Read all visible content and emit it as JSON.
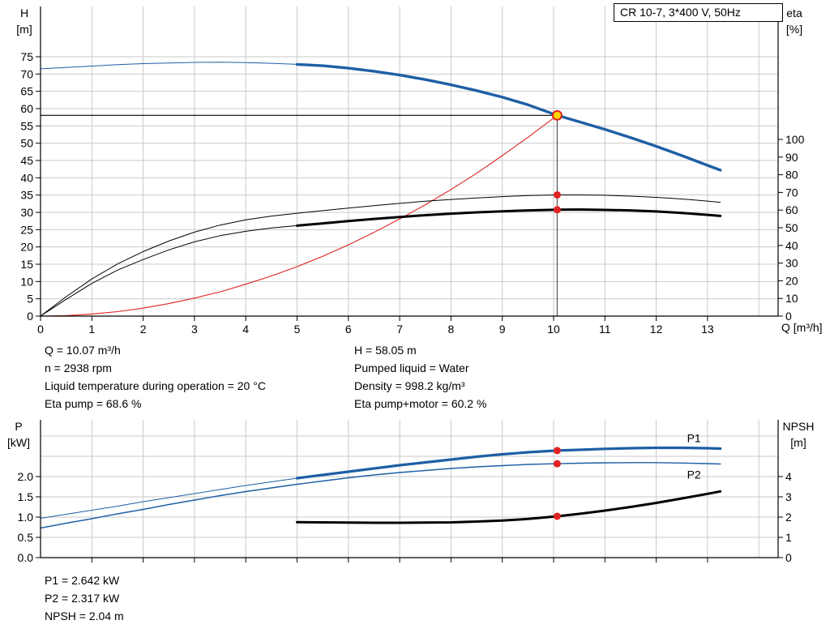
{
  "title_box": {
    "label": "CR 10-7, 3*400 V, 50Hz"
  },
  "colors": {
    "curve_blue": "#1e5fa4",
    "curve_red": "#e02222",
    "curve_black": "#000000",
    "grid": "#c9c9c9",
    "duty_yellow": "#ffd500"
  },
  "top_info": {
    "left": [
      "Q = 10.07 m³/h",
      "n = 2938 rpm",
      "Liquid temperature during operation = 20 °C",
      "Eta pump = 68.6 %"
    ],
    "right": [
      "H = 58.05 m",
      "Pumped liquid = Water",
      "Density = 998.2 kg/m³",
      "Eta pump+motor = 60.2 %"
    ]
  },
  "bottom_info": [
    "P1 = 2.642 kW",
    "P2 = 2.317 kW",
    "NPSH = 2.04 m"
  ],
  "chart_data": [
    {
      "id": "qh-eta-chart",
      "type": "line",
      "title": "CR 10-7, 3*400 V, 50Hz",
      "x_axis": {
        "label": "Q [m³/h]",
        "min": 0,
        "max": 14.35,
        "ticks": [
          0,
          1,
          2,
          3,
          4,
          5,
          6,
          7,
          8,
          9,
          10,
          11,
          12,
          13
        ],
        "grid": [
          1,
          2,
          3,
          4,
          5,
          6,
          7,
          8,
          9,
          10,
          11,
          12,
          13,
          14
        ]
      },
      "y_left_axis": {
        "name": "H",
        "unit": "[m]",
        "min": 0,
        "max": 75,
        "decimals": 0,
        "ticks": [
          0,
          5,
          10,
          15,
          20,
          25,
          30,
          35,
          40,
          45,
          50,
          55,
          60,
          65,
          70,
          75
        ],
        "grid": [
          5,
          10,
          15,
          20,
          25,
          30,
          35,
          40,
          45,
          50,
          55,
          60,
          65,
          70,
          75
        ]
      },
      "y_right_axis": {
        "name": "eta",
        "unit": "[%]",
        "min": 0,
        "max": 100,
        "decimals": 0,
        "ticks": [
          0,
          10,
          20,
          30,
          40,
          50,
          60,
          70,
          80,
          90,
          100
        ]
      },
      "duty_point": {
        "q": 10.07,
        "h": 58.05
      },
      "series": [
        {
          "id": "qh-curve-thin",
          "axis": "left",
          "color": "#1e5fa4",
          "width": 1,
          "points": [
            [
              0,
              71.5
            ],
            [
              0.5,
              71.9
            ],
            [
              1,
              72.3
            ],
            [
              1.5,
              72.7
            ],
            [
              2,
              73.0
            ],
            [
              2.5,
              73.2
            ],
            [
              3,
              73.35
            ],
            [
              3.5,
              73.4
            ],
            [
              4,
              73.3
            ],
            [
              4.5,
              73.1
            ],
            [
              5,
              72.8
            ],
            [
              5.5,
              72.4
            ]
          ]
        },
        {
          "id": "qh-curve",
          "axis": "left",
          "color": "#1e5fa4",
          "width": 3.4,
          "points": [
            [
              5,
              72.8
            ],
            [
              5.5,
              72.4
            ],
            [
              6,
              71.7
            ],
            [
              6.5,
              70.8
            ],
            [
              7,
              69.7
            ],
            [
              7.5,
              68.4
            ],
            [
              8,
              66.9
            ],
            [
              8.5,
              65.2
            ],
            [
              9,
              63.3
            ],
            [
              9.5,
              61.1
            ],
            [
              10.07,
              58.05
            ],
            [
              10.5,
              56.2
            ],
            [
              11,
              54.0
            ],
            [
              11.5,
              51.6
            ],
            [
              12,
              49.1
            ],
            [
              12.5,
              46.4
            ],
            [
              13,
              43.6
            ],
            [
              13.25,
              42.2
            ]
          ]
        },
        {
          "id": "system-curve",
          "axis": "left",
          "color": "#e02222",
          "width": 1.1,
          "points": [
            [
              0,
              0
            ],
            [
              0.5,
              0.15
            ],
            [
              1,
              0.6
            ],
            [
              1.5,
              1.3
            ],
            [
              2,
              2.3
            ],
            [
              2.5,
              3.6
            ],
            [
              3,
              5.2
            ],
            [
              3.5,
              7.0
            ],
            [
              4,
              9.2
            ],
            [
              4.5,
              11.6
            ],
            [
              5,
              14.3
            ],
            [
              5.5,
              17.3
            ],
            [
              6,
              20.6
            ],
            [
              6.5,
              24.2
            ],
            [
              7,
              28.1
            ],
            [
              7.5,
              32.2
            ],
            [
              8,
              36.6
            ],
            [
              8.5,
              41.3
            ],
            [
              9,
              46.4
            ],
            [
              9.5,
              51.7
            ],
            [
              10.07,
              58.05
            ]
          ]
        },
        {
          "id": "eta-pump-curve",
          "axis": "right",
          "color": "#000000",
          "width": 1,
          "points": [
            [
              0,
              0
            ],
            [
              0.5,
              11
            ],
            [
              1,
              21
            ],
            [
              1.5,
              29.5
            ],
            [
              2,
              36.5
            ],
            [
              2.5,
              42.5
            ],
            [
              3,
              47.5
            ],
            [
              3.5,
              51.5
            ],
            [
              4,
              54.5
            ],
            [
              4.5,
              56.6
            ],
            [
              5,
              58.2
            ],
            [
              5.5,
              59.7
            ],
            [
              6,
              61.1
            ],
            [
              6.5,
              62.5
            ],
            [
              7,
              63.8
            ],
            [
              7.5,
              65.0
            ],
            [
              8,
              66.0
            ],
            [
              8.5,
              66.9
            ],
            [
              9,
              67.6
            ],
            [
              9.5,
              68.2
            ],
            [
              10.07,
              68.6
            ],
            [
              10.5,
              68.6
            ],
            [
              11,
              68.4
            ],
            [
              11.5,
              67.9
            ],
            [
              12,
              67.2
            ],
            [
              12.5,
              66.3
            ],
            [
              13,
              65.1
            ],
            [
              13.25,
              64.4
            ]
          ]
        },
        {
          "id": "eta-pump-motor-curve-thin",
          "axis": "right",
          "color": "#000000",
          "width": 1,
          "points": [
            [
              0,
              0
            ],
            [
              0.5,
              9.5
            ],
            [
              1,
              18.5
            ],
            [
              1.5,
              26
            ],
            [
              2,
              32
            ],
            [
              2.5,
              37.5
            ],
            [
              3,
              42
            ],
            [
              3.5,
              45.5
            ],
            [
              4,
              48
            ],
            [
              4.5,
              49.9
            ],
            [
              5,
              51.2
            ],
            [
              5.5,
              52.5
            ]
          ]
        },
        {
          "id": "eta-pump-motor-curve",
          "axis": "right",
          "color": "#000000",
          "width": 3,
          "points": [
            [
              5,
              51.2
            ],
            [
              5.5,
              52.5
            ],
            [
              6,
              53.8
            ],
            [
              6.5,
              55.0
            ],
            [
              7,
              56.1
            ],
            [
              7.5,
              57.1
            ],
            [
              8,
              58.0
            ],
            [
              8.5,
              58.7
            ],
            [
              9,
              59.3
            ],
            [
              9.5,
              59.8
            ],
            [
              10.07,
              60.2
            ],
            [
              10.5,
              60.3
            ],
            [
              11,
              60.1
            ],
            [
              11.5,
              59.8
            ],
            [
              12,
              59.2
            ],
            [
              12.5,
              58.4
            ],
            [
              13,
              57.3
            ],
            [
              13.25,
              56.7
            ]
          ]
        }
      ],
      "markers": [
        {
          "id": "eta-pump-point",
          "axis": "right",
          "q": 10.07,
          "v": 68.6,
          "r": 4.5,
          "fill": "#e02222"
        },
        {
          "id": "eta-pump-motor-point",
          "axis": "right",
          "q": 10.07,
          "v": 60.2,
          "r": 4.5,
          "fill": "#e02222"
        },
        {
          "id": "duty-point",
          "axis": "left",
          "q": 10.07,
          "v": 58.05,
          "r": 5.5,
          "fill": "#ffd500",
          "stroke": "#e02222"
        }
      ],
      "labels": []
    },
    {
      "id": "power-npsh-chart",
      "type": "line",
      "x_axis": {
        "label": "",
        "min": 0,
        "max": 14.35,
        "ticks": [
          1,
          2,
          3,
          4,
          5,
          6,
          7,
          8,
          9,
          10,
          11,
          12,
          13
        ],
        "show_labels": false,
        "grid": [
          1,
          2,
          3,
          4,
          5,
          6,
          7,
          8,
          9,
          10,
          11,
          12,
          13,
          14
        ]
      },
      "y_left_axis": {
        "name": "P",
        "unit": "[kW]",
        "min": 0,
        "max": 3.3,
        "decimals": 1,
        "ticks": [
          0,
          0.5,
          1,
          1.5,
          2
        ],
        "grid": [
          0.5,
          1,
          1.5,
          2,
          2.5,
          3
        ]
      },
      "y_right_axis": {
        "name": "NPSH",
        "unit": "[m]",
        "min": 0,
        "max": 6.8,
        "decimals": 0,
        "ticks": [
          0,
          1,
          2,
          3,
          4
        ]
      },
      "series": [
        {
          "id": "p1-curve-thin",
          "axis": "left",
          "color": "#1e5fa4",
          "width": 1,
          "points": [
            [
              0,
              0.97
            ],
            [
              0.5,
              1.07
            ],
            [
              1,
              1.17
            ],
            [
              1.5,
              1.27
            ],
            [
              2,
              1.38
            ],
            [
              2.5,
              1.48
            ],
            [
              3,
              1.58
            ],
            [
              3.5,
              1.68
            ],
            [
              4,
              1.78
            ],
            [
              4.5,
              1.87
            ],
            [
              5,
              1.96
            ],
            [
              5.5,
              2.04
            ]
          ]
        },
        {
          "id": "p1-curve",
          "axis": "left",
          "color": "#1e5fa4",
          "width": 3.2,
          "points": [
            [
              5,
              1.96
            ],
            [
              5.5,
              2.04
            ],
            [
              6,
              2.12
            ],
            [
              6.5,
              2.2
            ],
            [
              7,
              2.28
            ],
            [
              7.5,
              2.35
            ],
            [
              8,
              2.42
            ],
            [
              8.5,
              2.49
            ],
            [
              9,
              2.55
            ],
            [
              9.5,
              2.6
            ],
            [
              10.07,
              2.642
            ],
            [
              10.5,
              2.66
            ],
            [
              11,
              2.685
            ],
            [
              11.5,
              2.7
            ],
            [
              12,
              2.71
            ],
            [
              12.5,
              2.71
            ],
            [
              13,
              2.7
            ],
            [
              13.25,
              2.69
            ]
          ]
        },
        {
          "id": "p2-curve",
          "axis": "left",
          "color": "#1e5fa4",
          "width": 1.4,
          "points": [
            [
              0,
              0.73
            ],
            [
              0.5,
              0.85
            ],
            [
              1,
              0.96
            ],
            [
              1.5,
              1.08
            ],
            [
              2,
              1.19
            ],
            [
              2.5,
              1.31
            ],
            [
              3,
              1.42
            ],
            [
              3.5,
              1.53
            ],
            [
              4,
              1.63
            ],
            [
              4.5,
              1.72
            ],
            [
              5,
              1.81
            ],
            [
              5.5,
              1.89
            ],
            [
              6,
              1.97
            ],
            [
              6.5,
              2.04
            ],
            [
              7,
              2.1
            ],
            [
              7.5,
              2.15
            ],
            [
              8,
              2.2
            ],
            [
              8.5,
              2.24
            ],
            [
              9,
              2.27
            ],
            [
              9.5,
              2.3
            ],
            [
              10.07,
              2.317
            ],
            [
              10.5,
              2.33
            ],
            [
              11,
              2.34
            ],
            [
              11.5,
              2.345
            ],
            [
              12,
              2.345
            ],
            [
              12.5,
              2.335
            ],
            [
              13,
              2.32
            ],
            [
              13.25,
              2.31
            ]
          ]
        },
        {
          "id": "npsh-curve",
          "axis": "right",
          "color": "#000000",
          "width": 3,
          "points": [
            [
              5,
              1.75
            ],
            [
              5.5,
              1.74
            ],
            [
              6,
              1.73
            ],
            [
              6.5,
              1.72
            ],
            [
              7,
              1.72
            ],
            [
              7.5,
              1.73
            ],
            [
              8,
              1.74
            ],
            [
              8.5,
              1.78
            ],
            [
              9,
              1.83
            ],
            [
              9.5,
              1.91
            ],
            [
              10.07,
              2.04
            ],
            [
              10.5,
              2.16
            ],
            [
              11,
              2.32
            ],
            [
              11.5,
              2.5
            ],
            [
              12,
              2.7
            ],
            [
              12.5,
              2.92
            ],
            [
              13,
              3.15
            ],
            [
              13.25,
              3.27
            ]
          ]
        }
      ],
      "markers": [
        {
          "id": "p1-point",
          "axis": "left",
          "q": 10.07,
          "v": 2.642,
          "r": 4.5,
          "fill": "#e02222"
        },
        {
          "id": "p2-point",
          "axis": "left",
          "q": 10.07,
          "v": 2.317,
          "r": 4.5,
          "fill": "#e02222"
        },
        {
          "id": "npsh-point",
          "axis": "right",
          "q": 10.07,
          "v": 2.04,
          "r": 4.5,
          "fill": "#e02222"
        }
      ],
      "labels": [
        {
          "id": "p1-label",
          "text": "P1",
          "axis": "left",
          "q": 12.6,
          "v": 2.85,
          "color": "#1e5fa4"
        },
        {
          "id": "p2-label",
          "text": "P2",
          "axis": "left",
          "q": 12.6,
          "v": 1.95,
          "color": "#1e5fa4"
        }
      ]
    }
  ]
}
